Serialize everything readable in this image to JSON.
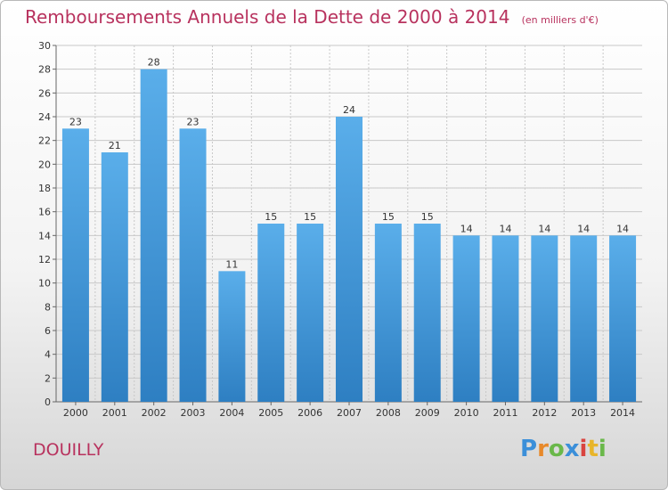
{
  "header": {
    "title": "Remboursements Annuels de la Dette de 2000 à 2014",
    "unit": "(en milliers d'€)"
  },
  "footer": {
    "place": "DOUILLY",
    "logo": [
      "P",
      "r",
      "o",
      "x",
      "i",
      "t",
      "i"
    ]
  },
  "colors": {
    "bar_top": "#5aaeea",
    "bar_bottom": "#2e7fc2",
    "title": "#b8325e",
    "grid": "#c8c8c8"
  },
  "chart_data": {
    "type": "bar",
    "categories": [
      "2000",
      "2001",
      "2002",
      "2003",
      "2004",
      "2005",
      "2006",
      "2007",
      "2008",
      "2009",
      "2010",
      "2011",
      "2012",
      "2013",
      "2014"
    ],
    "values": [
      23,
      21,
      28,
      23,
      11,
      15,
      15,
      24,
      15,
      15,
      14,
      14,
      14,
      14,
      14
    ],
    "title": "Remboursements Annuels de la Dette de 2000 à 2014",
    "xlabel": "",
    "ylabel": "",
    "ylim": [
      0,
      30
    ],
    "yticks": [
      0,
      2,
      4,
      6,
      8,
      10,
      12,
      14,
      16,
      18,
      20,
      22,
      24,
      26,
      28,
      30
    ],
    "grid": true,
    "data_labels": true
  }
}
